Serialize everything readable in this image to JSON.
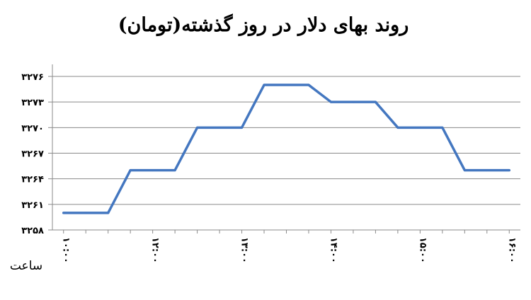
{
  "chart_data": {
    "type": "line",
    "title": "روند بهای دلار در روز گذشته(تومان)",
    "x_unit_label": "ساعت",
    "x": [
      1,
      2,
      3,
      4,
      5,
      6,
      7,
      8,
      9,
      10,
      11,
      12,
      13,
      14,
      15,
      16,
      17,
      18,
      19,
      20,
      21
    ],
    "x_tick_labels": [
      "۱۰:۰۰",
      "۱۲:۰۰",
      "۱۳:۰۰",
      "۱۴:۰۰",
      "۱۵:۰۰",
      "۱۶:۰۰"
    ],
    "x_tick_positions": [
      1,
      5,
      9,
      13,
      17,
      21
    ],
    "series": [
      {
        "values": [
          3260,
          3260,
          3260,
          3265,
          3265,
          3265,
          3270,
          3270,
          3270,
          3275,
          3275,
          3275,
          3273,
          3273,
          3273,
          3270,
          3270,
          3270,
          3265,
          3265,
          3265
        ],
        "color": "#4477c0"
      }
    ],
    "y_ticks": [
      3258,
      3261,
      3264,
      3267,
      3270,
      3273,
      3276
    ],
    "y_tick_labels": [
      "۳۲۵۸",
      "۳۲۶۱",
      "۳۲۶۴",
      "۳۲۶۷",
      "۳۲۷۰",
      "۳۲۷۳",
      "۳۲۷۶"
    ],
    "ylim": [
      3258,
      3276
    ],
    "xlim": [
      0.5,
      21.5
    ],
    "grid": true
  }
}
